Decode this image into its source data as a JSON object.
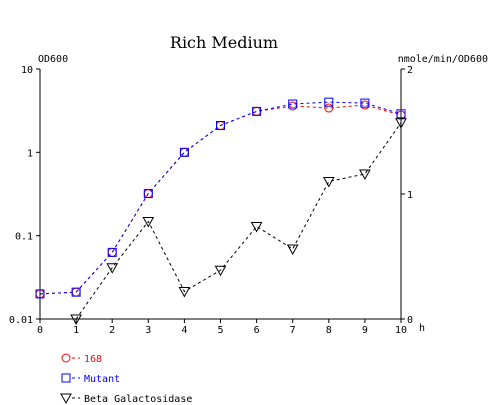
{
  "chart_data": {
    "type": "line",
    "title": "Rich Medium",
    "x_unit": "h",
    "left_axis_label": "OD600",
    "right_axis_label": "nmole/min/OD600",
    "left_scale": "log",
    "left_ylim": [
      0.01,
      10
    ],
    "right_ylim": [
      0,
      2
    ],
    "xlim": [
      0,
      10
    ],
    "grid": false,
    "legend_position": "bottom-left",
    "x_ticks": [
      "0",
      "1",
      "2",
      "3",
      "4",
      "5",
      "6",
      "7",
      "8",
      "9",
      "10"
    ],
    "left_ticks": [
      "10",
      "1",
      "0.1",
      "0.01"
    ],
    "right_ticks": [
      "2",
      "1",
      "0"
    ],
    "x": [
      0,
      1,
      2,
      3,
      4,
      5,
      6,
      7,
      8,
      9,
      10
    ],
    "series": [
      {
        "name": "168",
        "axis": "left",
        "marker": "circle",
        "color": "#ff0000",
        "dash": true,
        "x": [
          0,
          1,
          2,
          3,
          4,
          5,
          6,
          7,
          8,
          9,
          10
        ],
        "values": [
          0.02,
          0.021,
          0.063,
          0.32,
          1.0,
          2.1,
          3.1,
          3.6,
          3.4,
          3.7,
          2.8
        ]
      },
      {
        "name": "Mutant",
        "axis": "left",
        "marker": "square",
        "color": "#0000ff",
        "dash": true,
        "x": [
          0,
          1,
          2,
          3,
          4,
          5,
          6,
          7,
          8,
          9,
          10
        ],
        "values": [
          0.02,
          0.021,
          0.063,
          0.32,
          1.0,
          2.1,
          3.1,
          3.8,
          4.0,
          3.9,
          2.9
        ]
      },
      {
        "name": "Beta Galactosidase",
        "axis": "right",
        "marker": "triangle-down",
        "color": "#000000",
        "dash": true,
        "x": [
          1,
          2,
          3,
          4,
          5,
          6,
          7,
          8,
          9,
          10
        ],
        "values": [
          0.0,
          0.41,
          0.78,
          0.22,
          0.39,
          0.74,
          0.56,
          1.1,
          1.16,
          1.57
        ]
      }
    ]
  }
}
